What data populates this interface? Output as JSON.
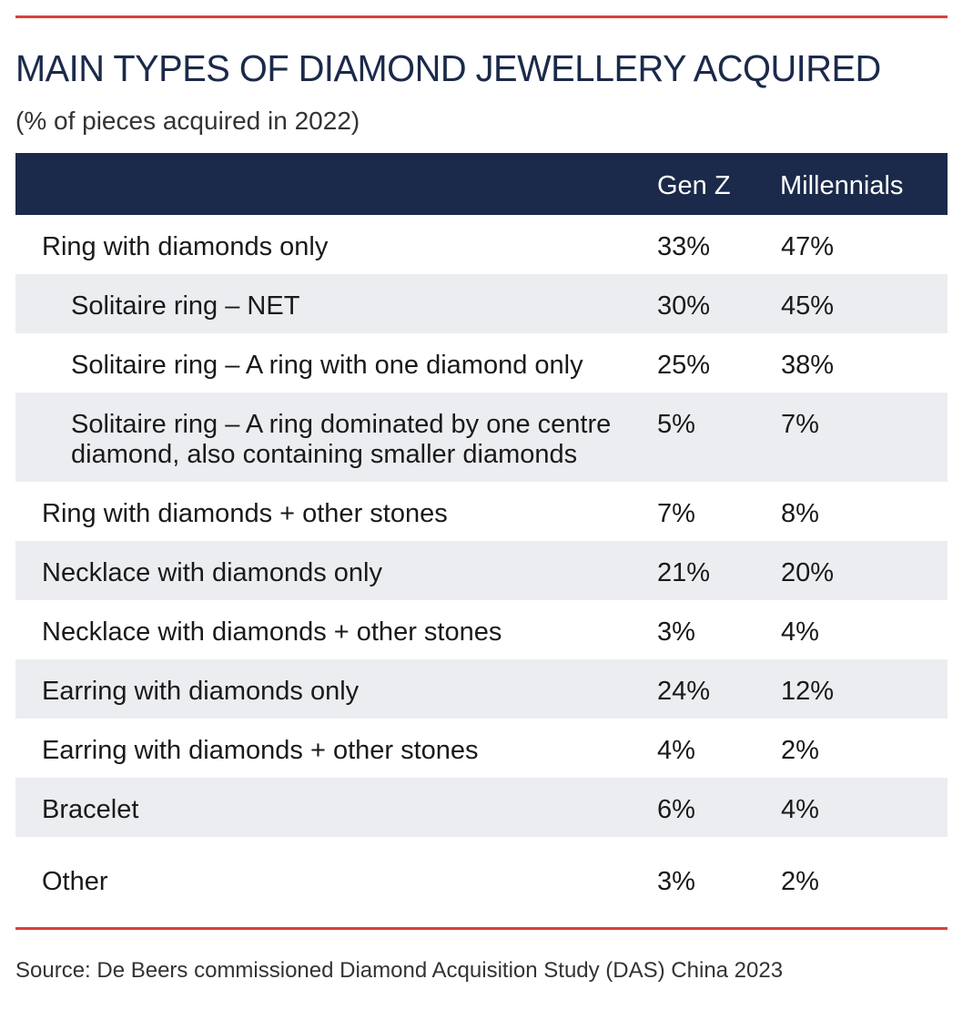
{
  "chart_data": {
    "type": "table",
    "title": "MAIN TYPES OF DIAMOND JEWELLERY ACQUIRED",
    "subtitle": "(% of pieces acquired in 2022)",
    "columns": [
      "",
      "Gen Z",
      "Millennials"
    ],
    "rows": [
      {
        "label_lines": [
          "Ring with diamonds only"
        ],
        "indent": false,
        "genz": "33%",
        "millennials": "47%",
        "shaded": false
      },
      {
        "label_lines": [
          "Solitaire ring – NET"
        ],
        "indent": true,
        "genz": "30%",
        "millennials": "45%",
        "shaded": true
      },
      {
        "label_lines": [
          "Solitaire ring – A ring with one diamond only"
        ],
        "indent": true,
        "genz": "25%",
        "millennials": "38%",
        "shaded": false
      },
      {
        "label_lines": [
          "Solitaire ring – A ring dominated by one centre",
          "diamond, also containing smaller diamonds"
        ],
        "indent": true,
        "genz": "5%",
        "millennials": "7%",
        "shaded": true
      },
      {
        "label_lines": [
          "Ring with diamonds + other stones"
        ],
        "indent": false,
        "genz": "7%",
        "millennials": "8%",
        "shaded": false
      },
      {
        "label_lines": [
          "Necklace with diamonds only"
        ],
        "indent": false,
        "genz": "21%",
        "millennials": "20%",
        "shaded": true
      },
      {
        "label_lines": [
          "Necklace with diamonds + other stones"
        ],
        "indent": false,
        "genz": "3%",
        "millennials": "4%",
        "shaded": false
      },
      {
        "label_lines": [
          "Earring with diamonds only"
        ],
        "indent": false,
        "genz": "24%",
        "millennials": "12%",
        "shaded": true
      },
      {
        "label_lines": [
          "Earring with diamonds + other stones"
        ],
        "indent": false,
        "genz": "4%",
        "millennials": "2%",
        "shaded": false
      },
      {
        "label_lines": [
          "Bracelet"
        ],
        "indent": false,
        "genz": "6%",
        "millennials": "4%",
        "shaded": true
      },
      {
        "label_lines": [
          "Other"
        ],
        "indent": false,
        "genz": "3%",
        "millennials": "2%",
        "shaded": false
      }
    ],
    "source": "Source: De Beers commissioned Diamond Acquisition Study (DAS) China 2023"
  },
  "colors": {
    "accent_rule": "#d9403a",
    "header_bg": "#1b2a4a",
    "row_shade": "#ecedf0"
  }
}
